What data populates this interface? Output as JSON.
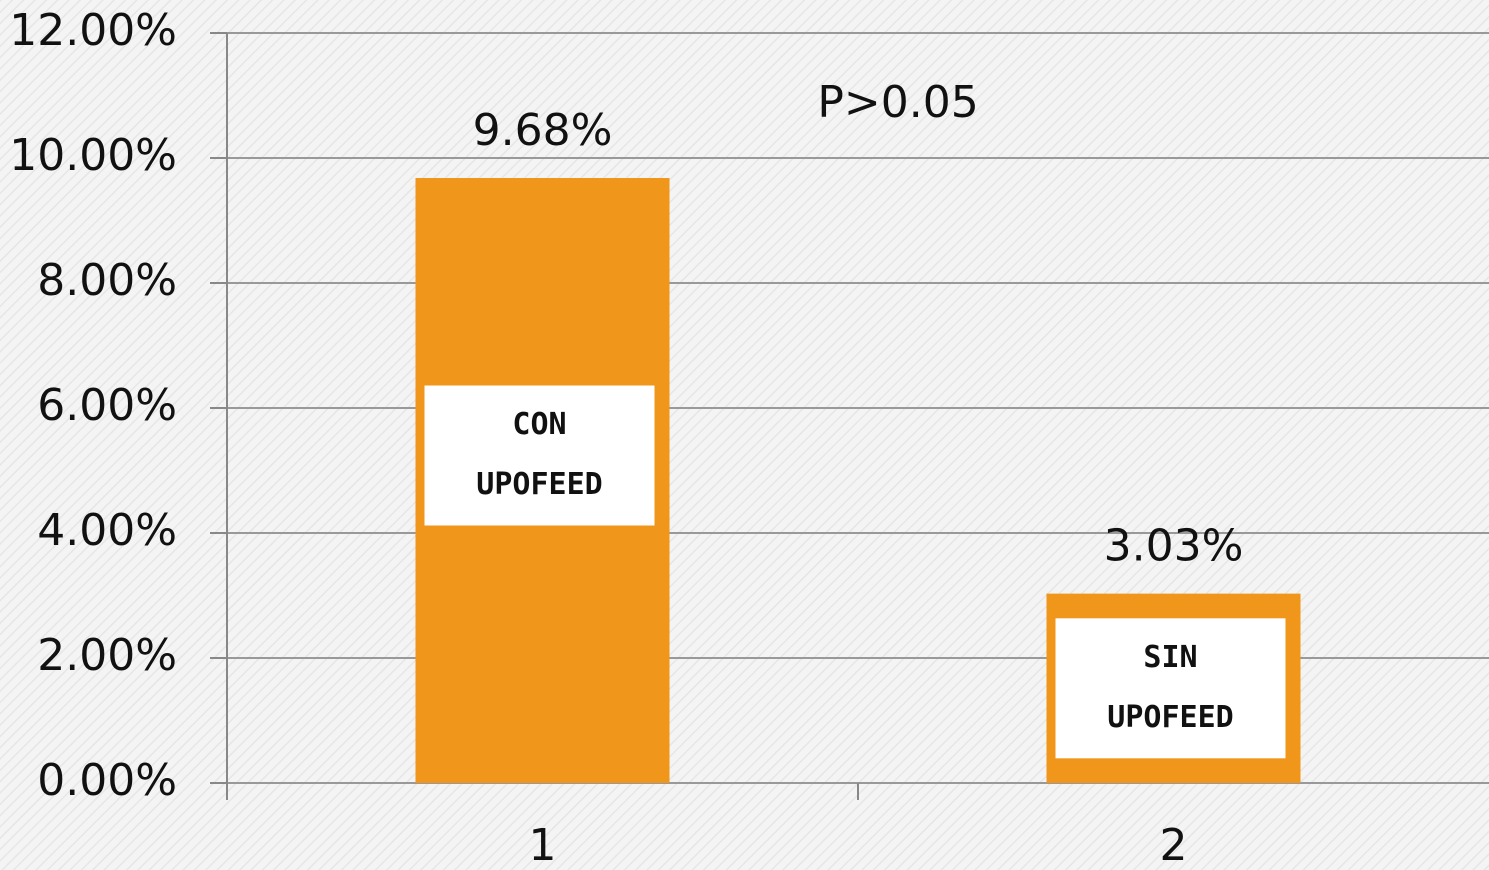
{
  "chart_data": {
    "type": "bar",
    "categories": [
      "1",
      "2"
    ],
    "values": [
      9.68,
      3.03
    ],
    "value_labels": [
      "9.68%",
      "3.03%"
    ],
    "color": "#f0961a",
    "bar_labels": [
      [
        "CON",
        "UPOFEED"
      ],
      [
        "SIN",
        "UPOFEED"
      ]
    ],
    "annotation": "P>0.05",
    "ylim": [
      0,
      12
    ],
    "yticks": [
      {
        "value": 0,
        "label": "0.00%"
      },
      {
        "value": 2,
        "label": "2.00%"
      },
      {
        "value": 4,
        "label": "4.00%"
      },
      {
        "value": 6,
        "label": "6.00%"
      },
      {
        "value": 8,
        "label": "8.00%"
      },
      {
        "value": 10,
        "label": "10.00%"
      },
      {
        "value": 12,
        "label": "12.00%"
      }
    ],
    "grid": true
  }
}
